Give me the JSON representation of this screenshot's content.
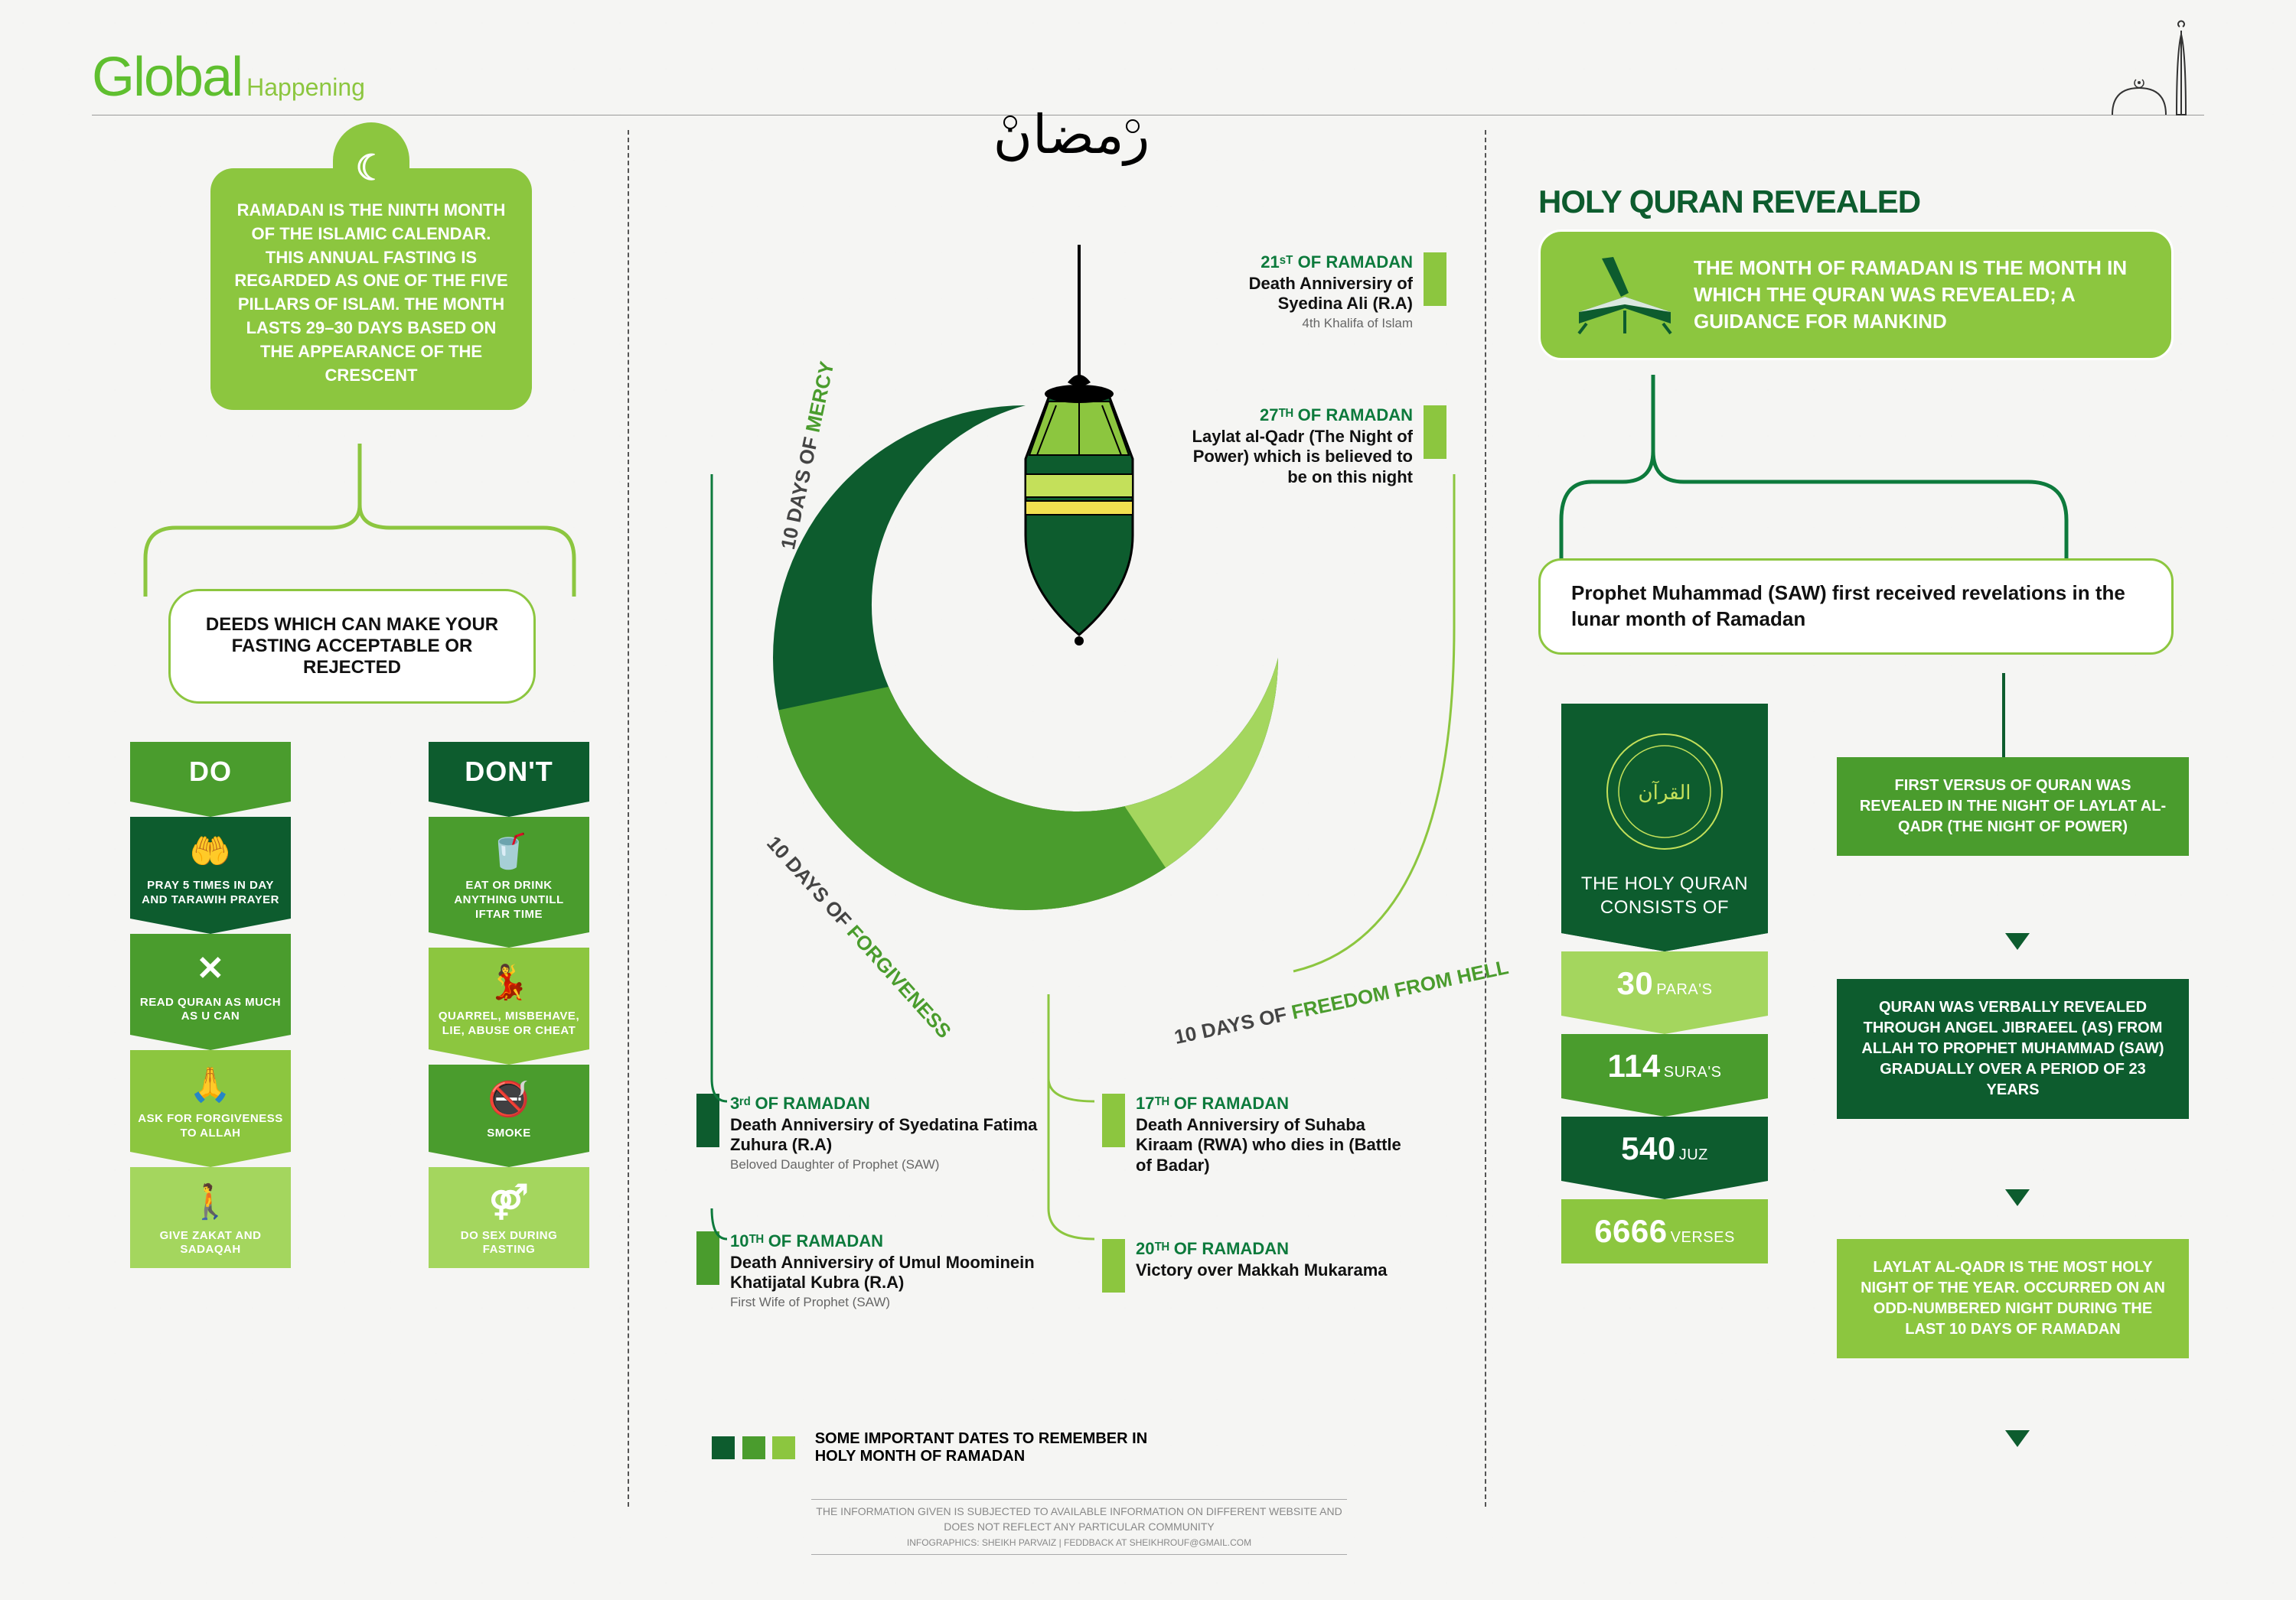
{
  "header": {
    "main": "Global",
    "sub": "Happening"
  },
  "colors": {
    "dark_green": "#0d5c2e",
    "mid_green": "#4a9c2d",
    "light_green": "#8cc63f",
    "lime": "#a4d65e",
    "yellow_green": "#c4e05a",
    "text_dark": "#111111",
    "bg": "#f5f5f3"
  },
  "left": {
    "intro": "RAMADAN IS THE NINTH MONTH OF THE ISLAMIC CALENDAR. THIS ANNUAL FASTING IS REGARDED AS ONE OF THE FIVE PILLARS OF ISLAM. THE MONTH LASTS 29–30 DAYS BASED ON THE APPEARANCE OF THE CRESCENT",
    "deeds_heading": "DEEDS WHICH CAN MAKE YOUR FASTING ACCEPTABLE OR REJECTED",
    "do_label": "DO",
    "dont_label": "DON'T",
    "do_items": [
      {
        "icon": "🤲",
        "text": "PRAY 5 TIMES IN DAY AND TARAWIH PRAYER",
        "bg": "#0d5c2e"
      },
      {
        "icon": "✕",
        "text": "READ QURAN AS MUCH AS U CAN",
        "bg": "#4a9c2d"
      },
      {
        "icon": "🙏",
        "text": "ASK FOR FORGIVENESS TO ALLAH",
        "bg": "#8cc63f"
      },
      {
        "icon": "🚶",
        "text": "GIVE ZAKAT AND SADAQAH",
        "bg": "#a4d65e"
      }
    ],
    "dont_items": [
      {
        "icon": "🥤",
        "text": "EAT OR DRINK ANYTHING UNTILL IFTAR TIME",
        "bg": "#4a9c2d"
      },
      {
        "icon": "💃",
        "text": "QUARREL, MISBEHAVE, LIE, ABUSE OR CHEAT",
        "bg": "#8cc63f"
      },
      {
        "icon": "🚭",
        "text": "SMOKE",
        "bg": "#4a9c2d"
      },
      {
        "icon": "⚤",
        "text": "DO SEX DURING FASTING",
        "bg": "#a4d65e"
      }
    ]
  },
  "center": {
    "arcs": {
      "mercy": {
        "prefix": "10 DAYS OF ",
        "highlight": "MERCY"
      },
      "forgiveness": {
        "prefix": "10 DAYS OF ",
        "highlight": "FORGIVENESS"
      },
      "freedom": {
        "prefix": "10 DAYS OF ",
        "highlight": "FREEDOM FROM HELL"
      }
    },
    "dates": [
      {
        "pos": "left_a",
        "marker": "#0d5c2e",
        "head": "3ʳᵈ OF RAMADAN",
        "body": "Death Anniversiry of Syedatina Fatima Zuhura (R.A)",
        "sub": "Beloved Daughter of Prophet (SAW)"
      },
      {
        "pos": "left_b",
        "marker": "#4a9c2d",
        "head": "10ᵀᴴ OF RAMADAN",
        "body": "Death Anniversiry of Umul Moominein Khatijatal Kubra (R.A)",
        "sub": "First Wife of  Prophet (SAW)"
      },
      {
        "pos": "mid_a",
        "marker": "#8cc63f",
        "head": "17ᵀᴴ OF RAMADAN",
        "body": "Death Anniversiry of Suhaba Kiraam (RWA) who dies in (Battle of Badar)",
        "sub": ""
      },
      {
        "pos": "mid_b",
        "marker": "#8cc63f",
        "head": "20ᵀᴴ OF RAMADAN",
        "body": "Victory over Makkah Mukarama",
        "sub": ""
      },
      {
        "pos": "right_a",
        "marker": "#8cc63f",
        "head": "21ˢᵀ OF RAMADAN",
        "body": "Death Anniversiry of Syedina Ali (R.A)",
        "sub": "4th Khalifa of Islam"
      },
      {
        "pos": "right_b",
        "marker": "#8cc63f",
        "head": "27ᵀᴴ OF RAMADAN",
        "body": "Laylat al-Qadr (The Night of Power) which is believed to be on this night",
        "sub": ""
      }
    ],
    "legend": "SOME IMPORTANT DATES TO REMEMBER IN HOLY MONTH OF RAMADAN",
    "disclaimer_1": "THE INFORMATION GIVEN IS SUBJECTED TO AVAILABLE INFORMATION ON DIFFERENT WEBSITE AND DOES NOT REFLECT ANY PARTICULAR COMMUNITY",
    "disclaimer_2": "INFOGRAPHICS: SHEIKH PARVAIZ | FEDDBACK AT SHEIKHROUF@GMAIL.COM"
  },
  "right": {
    "title": "HOLY QURAN REVEALED",
    "card": "THE MONTH OF RAMADAN IS THE MONTH IN WHICH THE QURAN WAS REVEALED; A GUIDANCE FOR MANKIND",
    "prophet": "Prophet Muhammad (SAW) first received revelations in the lunar month of Ramadan",
    "quran_bar": {
      "head": "THE HOLY QURAN CONSISTS OF",
      "segments": [
        {
          "num": "30",
          "unit": "PARA'S",
          "bg": "#a4d65e"
        },
        {
          "num": "114",
          "unit": "SURA'S",
          "bg": "#4a9c2d"
        },
        {
          "num": "540",
          "unit": "JUZ",
          "bg": "#0d5c2e"
        },
        {
          "num": "6666",
          "unit": "VERSES",
          "bg": "#8cc63f"
        }
      ]
    },
    "facts": [
      {
        "text": "FIRST VERSUS OF QURAN WAS REVEALED IN THE NIGHT OF LAYLAT AL-QADR (THE NIGHT OF POWER)",
        "bg": "#4a9c2d"
      },
      {
        "text": "QURAN WAS VERBALLY REVEALED THROUGH ANGEL JIBRAEEL (AS) FROM ALLAH TO PROPHET MUHAMMAD (SAW) GRADUALLY OVER A PERIOD OF 23 YEARS",
        "bg": "#0d5c2e"
      },
      {
        "text": "LAYLAT AL-QADR IS THE MOST HOLY NIGHT OF THE YEAR. OCCURRED ON AN ODD-NUMBERED NIGHT DURING THE LAST 10 DAYS OF RAMADAN",
        "bg": "#8cc63f"
      }
    ]
  }
}
